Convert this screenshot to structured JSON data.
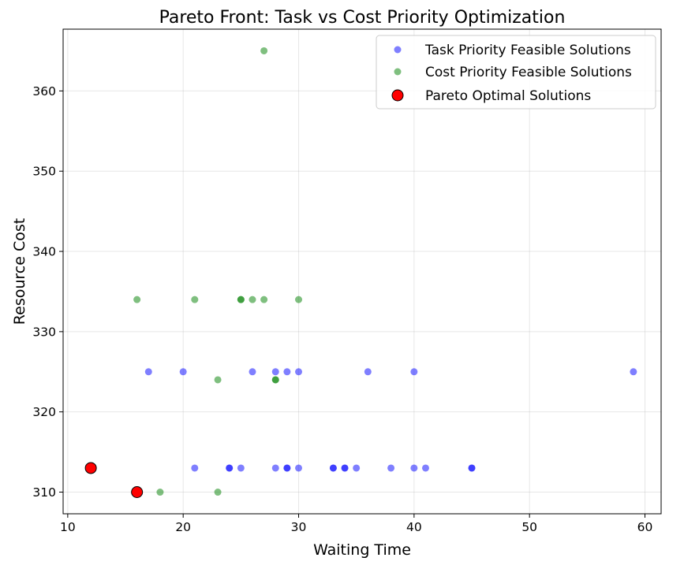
{
  "chart_data": {
    "type": "scatter",
    "title": "Pareto Front: Task vs Cost Priority Optimization",
    "xlabel": "Waiting Time",
    "ylabel": "Resource Cost",
    "xlim": [
      9.6,
      61.4
    ],
    "ylim": [
      307.3,
      367.7
    ],
    "xticks": [
      10,
      20,
      30,
      40,
      50,
      60
    ],
    "yticks": [
      310,
      320,
      330,
      340,
      350,
      360
    ],
    "grid": true,
    "legend_position": "top-right",
    "series": [
      {
        "name": "Task Priority Feasible Solutions",
        "color": "#0000ff",
        "alpha": 0.5,
        "marker": "circle",
        "points": [
          [
            17,
            325
          ],
          [
            20,
            325
          ],
          [
            26,
            325
          ],
          [
            28,
            325
          ],
          [
            29,
            325
          ],
          [
            30,
            325
          ],
          [
            36,
            325
          ],
          [
            40,
            325
          ],
          [
            59,
            325
          ],
          [
            21,
            313
          ],
          [
            24,
            313
          ],
          [
            24,
            313
          ],
          [
            25,
            313
          ],
          [
            28,
            313
          ],
          [
            29,
            313
          ],
          [
            29,
            313
          ],
          [
            30,
            313
          ],
          [
            33,
            313
          ],
          [
            33,
            313
          ],
          [
            34,
            313
          ],
          [
            34,
            313
          ],
          [
            35,
            313
          ],
          [
            38,
            313
          ],
          [
            40,
            313
          ],
          [
            41,
            313
          ],
          [
            45,
            313
          ],
          [
            45,
            313
          ]
        ]
      },
      {
        "name": "Cost Priority Feasible Solutions",
        "color": "#008000",
        "alpha": 0.5,
        "marker": "circle",
        "points": [
          [
            27,
            365
          ],
          [
            16,
            334
          ],
          [
            21,
            334
          ],
          [
            25,
            334
          ],
          [
            25,
            334
          ],
          [
            26,
            334
          ],
          [
            27,
            334
          ],
          [
            30,
            334
          ],
          [
            23,
            324
          ],
          [
            28,
            324
          ],
          [
            28,
            324
          ],
          [
            18,
            310
          ],
          [
            23,
            310
          ]
        ]
      },
      {
        "name": "Pareto Optimal Solutions",
        "color": "#ff0000",
        "alpha": 1,
        "marker": "circle-large-outlined",
        "points": [
          [
            12,
            313
          ],
          [
            16,
            310
          ]
        ]
      }
    ]
  }
}
